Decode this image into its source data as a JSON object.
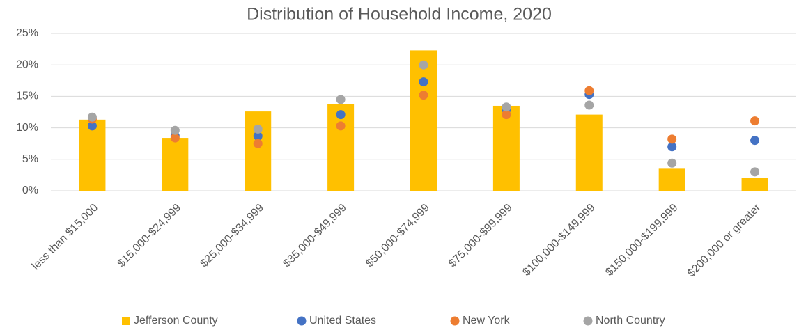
{
  "chart_data": {
    "type": "bar",
    "title": "Distribution of Household Income, 2020",
    "categories": [
      "less than $15,000",
      "$15,000-$24,999",
      "$25,000-$34,999",
      "$35,000-$49,999",
      "$50,000-$74,999",
      "$75,000-$99,999",
      "$100,000-$149,999",
      "$150,000-$199,999",
      "$200,000 or greater"
    ],
    "series": [
      {
        "name": "Jefferson County",
        "type": "bar",
        "color": "#FFC000",
        "values": [
          11.3,
          8.4,
          12.6,
          13.8,
          22.3,
          13.5,
          12.1,
          3.5,
          2.1
        ]
      },
      {
        "name": "United States",
        "type": "dot",
        "color": "#4472C4",
        "values": [
          10.3,
          8.7,
          8.7,
          12.1,
          17.3,
          12.9,
          15.3,
          7.0,
          8.0
        ]
      },
      {
        "name": "New York",
        "type": "dot",
        "color": "#ED7D31",
        "values": [
          11.4,
          8.4,
          7.5,
          10.3,
          15.2,
          12.1,
          15.9,
          8.2,
          11.1
        ]
      },
      {
        "name": "North Country",
        "type": "dot",
        "color": "#A5A5A5",
        "values": [
          11.7,
          9.6,
          9.8,
          14.5,
          20.0,
          13.3,
          13.6,
          4.4,
          3.0
        ]
      }
    ],
    "ylim": [
      0,
      25
    ],
    "yticks": [
      {
        "value": 0,
        "label": "0%"
      },
      {
        "value": 5,
        "label": "5%"
      },
      {
        "value": 10,
        "label": "10%"
      },
      {
        "value": 15,
        "label": "15%"
      },
      {
        "value": 20,
        "label": "20%"
      },
      {
        "value": 25,
        "label": "25%"
      }
    ],
    "grid": true,
    "legend": "bottom"
  }
}
